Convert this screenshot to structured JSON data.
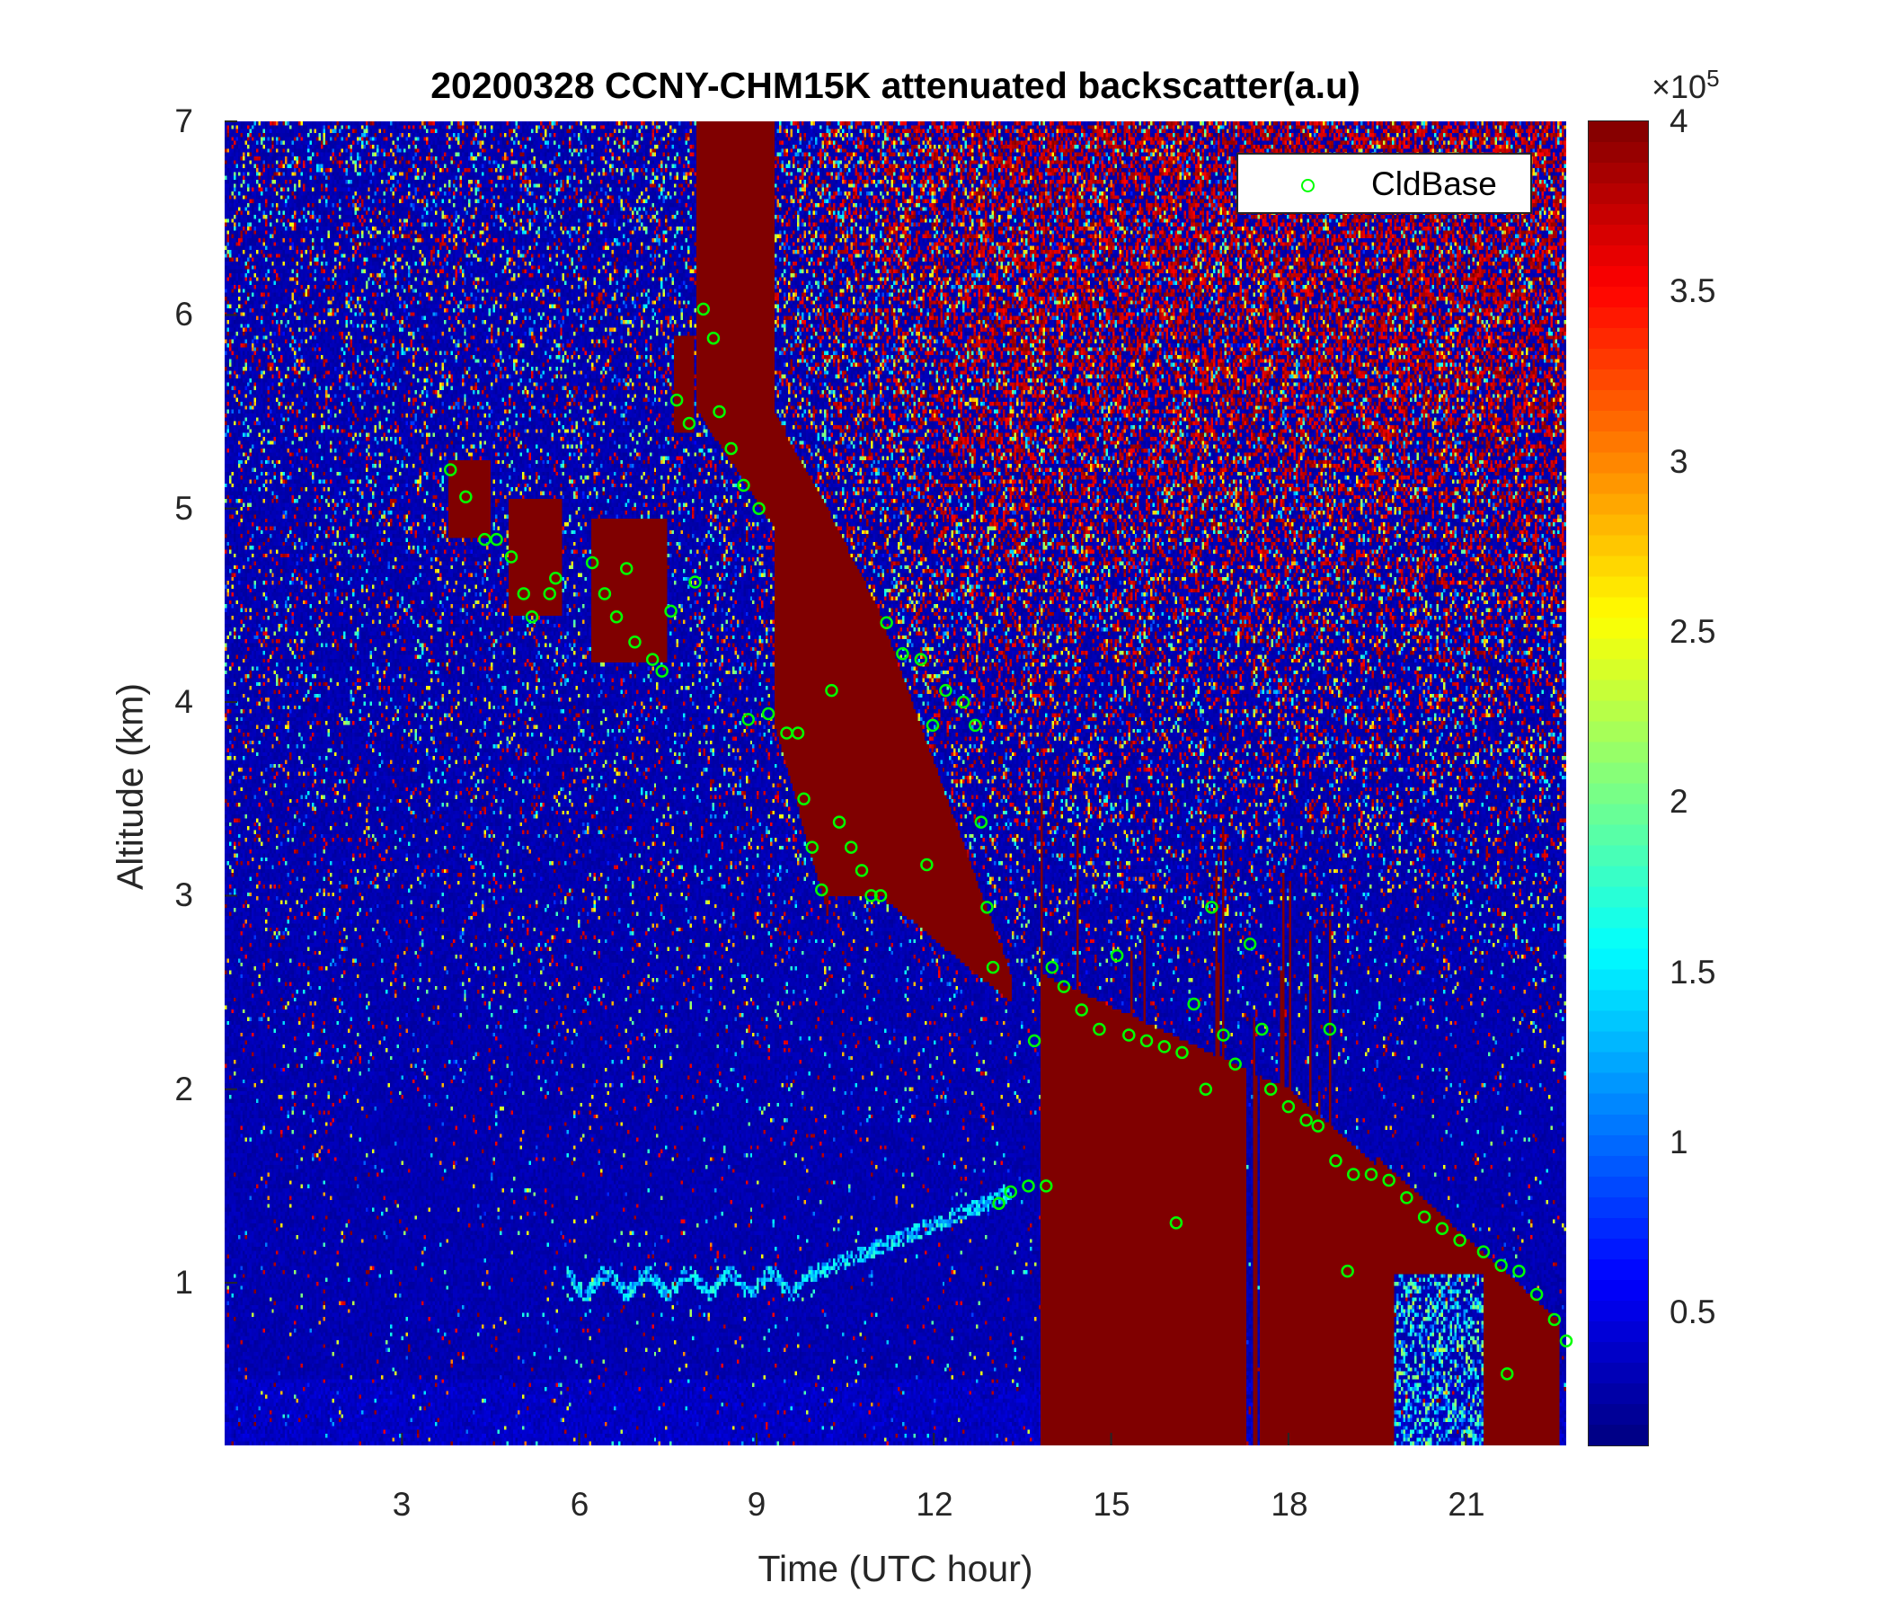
{
  "chart_data": {
    "type": "heatmap",
    "title": "20200328 CCNY-CHM15K attenuated backscatter(a.u)",
    "xlabel": "Time (UTC hour)",
    "ylabel": "Altitude (km)",
    "xlim": [
      0,
      22.7
    ],
    "ylim": [
      0.16,
      7
    ],
    "xticks": [
      "3",
      "6",
      "9",
      "12",
      "15",
      "18",
      "21"
    ],
    "yticks": [
      "1",
      "2",
      "3",
      "4",
      "5",
      "6",
      "7"
    ],
    "colorbar": {
      "colormap": "jet",
      "range": [
        0.11,
        4
      ],
      "ticks": [
        "0.5",
        "1",
        "1.5",
        "2",
        "2.5",
        "3",
        "3.5",
        "4"
      ],
      "multiplier": "×10",
      "multiplier_exponent": "5"
    },
    "grid": false,
    "legend": {
      "position": "top-right",
      "entries": [
        "CldBase"
      ]
    },
    "series": [
      {
        "name": "CldBase",
        "marker": "circle",
        "color": "#00ff00",
        "points": [
          [
            3.82,
            5.2
          ],
          [
            4.08,
            5.06
          ],
          [
            4.4,
            4.84
          ],
          [
            4.6,
            4.84
          ],
          [
            4.85,
            4.75
          ],
          [
            5.06,
            4.56
          ],
          [
            5.2,
            4.44
          ],
          [
            5.5,
            4.56
          ],
          [
            5.6,
            4.64
          ],
          [
            6.22,
            4.72
          ],
          [
            6.43,
            4.56
          ],
          [
            6.63,
            4.44
          ],
          [
            6.8,
            4.69
          ],
          [
            6.94,
            4.31
          ],
          [
            7.24,
            4.22
          ],
          [
            7.4,
            4.16
          ],
          [
            7.55,
            4.47
          ],
          [
            7.96,
            4.62
          ],
          [
            7.65,
            5.56
          ],
          [
            7.86,
            5.44
          ],
          [
            8.1,
            6.03
          ],
          [
            8.27,
            5.88
          ],
          [
            8.37,
            5.5
          ],
          [
            8.57,
            5.31
          ],
          [
            8.78,
            5.12
          ],
          [
            9.04,
            5.0
          ],
          [
            8.86,
            3.91
          ],
          [
            9.2,
            3.94
          ],
          [
            9.51,
            3.84
          ],
          [
            9.7,
            3.84
          ],
          [
            9.8,
            3.5
          ],
          [
            9.94,
            3.25
          ],
          [
            10.1,
            3.03
          ],
          [
            10.27,
            4.06
          ],
          [
            10.4,
            3.38
          ],
          [
            10.6,
            3.25
          ],
          [
            10.78,
            3.13
          ],
          [
            10.94,
            3.0
          ],
          [
            11.1,
            3.0
          ],
          [
            11.2,
            4.41
          ],
          [
            11.47,
            4.25
          ],
          [
            11.78,
            4.22
          ],
          [
            11.98,
            3.88
          ],
          [
            11.88,
            3.16
          ],
          [
            12.2,
            4.06
          ],
          [
            12.5,
            4.0
          ],
          [
            12.7,
            3.88
          ],
          [
            12.8,
            3.38
          ],
          [
            12.9,
            2.94
          ],
          [
            13.0,
            2.63
          ],
          [
            13.1,
            1.41
          ],
          [
            13.3,
            1.47
          ],
          [
            13.6,
            1.5
          ],
          [
            13.7,
            2.25
          ],
          [
            13.9,
            1.5
          ],
          [
            14.0,
            2.63
          ],
          [
            14.2,
            2.53
          ],
          [
            14.5,
            2.41
          ],
          [
            14.8,
            2.31
          ],
          [
            15.1,
            2.69
          ],
          [
            15.3,
            2.28
          ],
          [
            15.6,
            2.25
          ],
          [
            15.9,
            2.22
          ],
          [
            16.2,
            2.19
          ],
          [
            16.1,
            1.31
          ],
          [
            16.4,
            2.44
          ],
          [
            16.6,
            2.0
          ],
          [
            16.7,
            2.94
          ],
          [
            16.9,
            2.28
          ],
          [
            17.1,
            2.13
          ],
          [
            17.35,
            2.75
          ],
          [
            17.55,
            2.31
          ],
          [
            17.7,
            2.0
          ],
          [
            18.0,
            1.91
          ],
          [
            18.3,
            1.84
          ],
          [
            18.5,
            1.81
          ],
          [
            18.7,
            2.31
          ],
          [
            18.8,
            1.63
          ],
          [
            19.0,
            1.06
          ],
          [
            19.1,
            1.56
          ],
          [
            19.4,
            1.56
          ],
          [
            19.7,
            1.53
          ],
          [
            20.0,
            1.44
          ],
          [
            20.3,
            1.34
          ],
          [
            20.6,
            1.28
          ],
          [
            20.9,
            1.22
          ],
          [
            21.3,
            1.16
          ],
          [
            21.6,
            1.09
          ],
          [
            21.7,
            0.53
          ],
          [
            21.9,
            1.06
          ],
          [
            22.2,
            0.94
          ],
          [
            22.5,
            0.81
          ],
          [
            22.7,
            0.7
          ]
        ]
      }
    ]
  }
}
